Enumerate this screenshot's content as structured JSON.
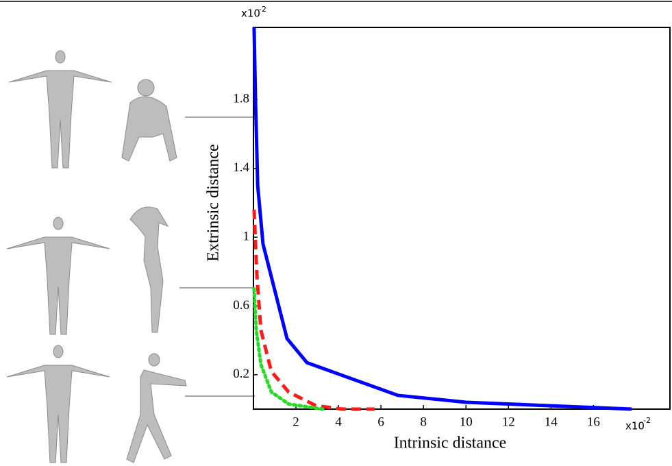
{
  "chart_data": {
    "type": "line",
    "x_label": "Intrinsic distance",
    "y_label": "Extrinsic distance",
    "x_multiplier": {
      "base": "x10",
      "exponent": "-2"
    },
    "y_multiplier": {
      "base": "x10",
      "exponent": "-2"
    },
    "xlim": [
      0,
      19.6
    ],
    "ylim": [
      0,
      2.22
    ],
    "xticks": [
      2,
      4,
      6,
      8,
      10,
      12,
      14,
      16
    ],
    "yticks": [
      0.2,
      0.6,
      1,
      1.4,
      1.8
    ],
    "series": [
      {
        "color": "#0000ff",
        "style": "solid",
        "x": [
          0.03,
          0.1,
          0.2,
          0.45,
          1.58,
          2.52,
          6.8,
          10.0,
          17.8
        ],
        "values": [
          2.22,
          1.78,
          1.3,
          0.96,
          0.41,
          0.27,
          0.08,
          0.04,
          0.0
        ]
      },
      {
        "color": "#ff1a1a",
        "style": "dashed",
        "x": [
          0.03,
          0.16,
          0.35,
          0.84,
          1.65,
          2.94,
          4.2,
          5.7
        ],
        "values": [
          1.16,
          0.78,
          0.46,
          0.22,
          0.1,
          0.02,
          0.0,
          0.0
        ]
      },
      {
        "color": "#22dd22",
        "style": "dotted",
        "x": [
          0.03,
          0.13,
          0.35,
          0.84,
          1.65,
          3.26
        ],
        "values": [
          0.7,
          0.46,
          0.26,
          0.1,
          0.03,
          0.0
        ]
      }
    ]
  }
}
